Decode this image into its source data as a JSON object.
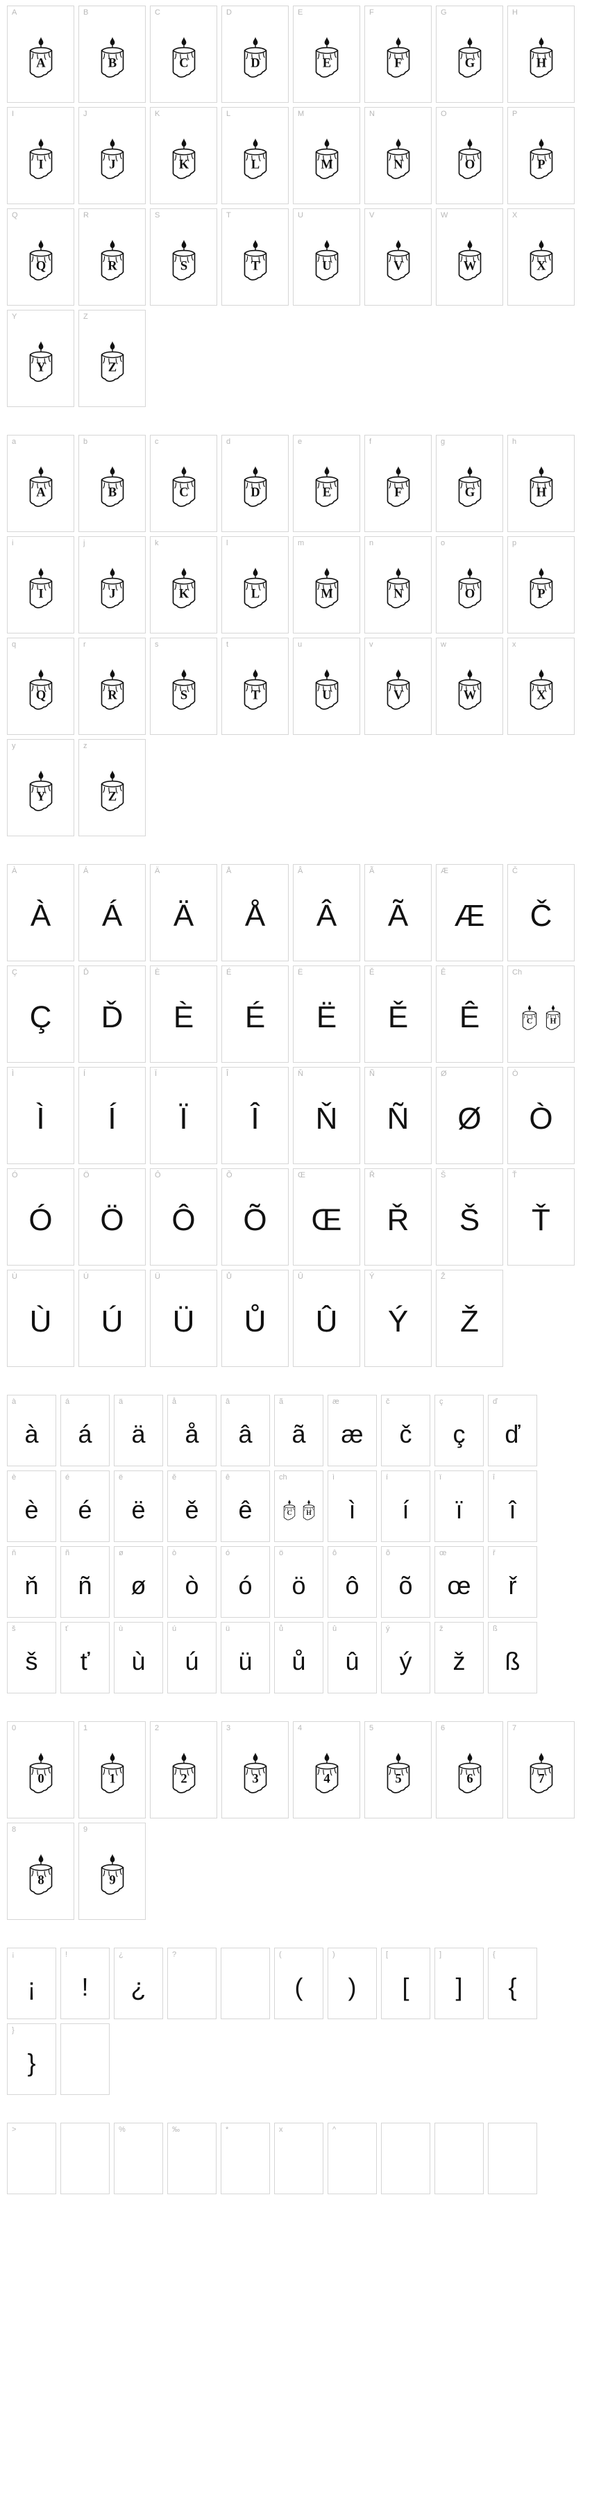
{
  "colors": {
    "cell_border": "#d6d6d6",
    "cell_bg": "#ffffff",
    "label_color": "#b8b8b8",
    "glyph_color": "#111111",
    "body_bg": "#ffffff"
  },
  "cell_sizes": {
    "large": {
      "w": 97,
      "h": 140
    },
    "small": {
      "w": 71,
      "h": 103
    }
  },
  "sections": [
    {
      "id": "uppercase",
      "size": "large",
      "cells": [
        {
          "label": "A",
          "type": "candle",
          "letter": "A"
        },
        {
          "label": "B",
          "type": "candle",
          "letter": "B"
        },
        {
          "label": "C",
          "type": "candle",
          "letter": "C"
        },
        {
          "label": "D",
          "type": "candle",
          "letter": "D"
        },
        {
          "label": "E",
          "type": "candle",
          "letter": "E"
        },
        {
          "label": "F",
          "type": "candle",
          "letter": "F"
        },
        {
          "label": "G",
          "type": "candle",
          "letter": "G"
        },
        {
          "label": "H",
          "type": "candle",
          "letter": "H"
        },
        {
          "label": "I",
          "type": "candle",
          "letter": "I"
        },
        {
          "label": "J",
          "type": "candle",
          "letter": "J"
        },
        {
          "label": "K",
          "type": "candle",
          "letter": "K"
        },
        {
          "label": "L",
          "type": "candle",
          "letter": "L"
        },
        {
          "label": "M",
          "type": "candle",
          "letter": "M"
        },
        {
          "label": "N",
          "type": "candle",
          "letter": "N"
        },
        {
          "label": "O",
          "type": "candle",
          "letter": "O"
        },
        {
          "label": "P",
          "type": "candle",
          "letter": "P"
        },
        {
          "label": "Q",
          "type": "candle",
          "letter": "Q"
        },
        {
          "label": "R",
          "type": "candle",
          "letter": "R"
        },
        {
          "label": "S",
          "type": "candle",
          "letter": "S"
        },
        {
          "label": "T",
          "type": "candle",
          "letter": "T"
        },
        {
          "label": "U",
          "type": "candle",
          "letter": "U"
        },
        {
          "label": "V",
          "type": "candle",
          "letter": "V"
        },
        {
          "label": "W",
          "type": "candle",
          "letter": "W"
        },
        {
          "label": "X",
          "type": "candle",
          "letter": "X"
        },
        {
          "label": "Y",
          "type": "candle",
          "letter": "Y"
        },
        {
          "label": "Z",
          "type": "candle",
          "letter": "Z"
        }
      ]
    },
    {
      "id": "lowercase",
      "size": "large",
      "cells": [
        {
          "label": "a",
          "type": "candle",
          "letter": "A"
        },
        {
          "label": "b",
          "type": "candle",
          "letter": "B"
        },
        {
          "label": "c",
          "type": "candle",
          "letter": "C"
        },
        {
          "label": "d",
          "type": "candle",
          "letter": "D"
        },
        {
          "label": "e",
          "type": "candle",
          "letter": "E"
        },
        {
          "label": "f",
          "type": "candle",
          "letter": "F"
        },
        {
          "label": "g",
          "type": "candle",
          "letter": "G"
        },
        {
          "label": "h",
          "type": "candle",
          "letter": "H"
        },
        {
          "label": "i",
          "type": "candle",
          "letter": "I"
        },
        {
          "label": "j",
          "type": "candle",
          "letter": "J"
        },
        {
          "label": "k",
          "type": "candle",
          "letter": "K"
        },
        {
          "label": "l",
          "type": "candle",
          "letter": "L"
        },
        {
          "label": "m",
          "type": "candle",
          "letter": "M"
        },
        {
          "label": "n",
          "type": "candle",
          "letter": "N"
        },
        {
          "label": "o",
          "type": "candle",
          "letter": "O"
        },
        {
          "label": "p",
          "type": "candle",
          "letter": "P"
        },
        {
          "label": "q",
          "type": "candle",
          "letter": "Q"
        },
        {
          "label": "r",
          "type": "candle",
          "letter": "R"
        },
        {
          "label": "s",
          "type": "candle",
          "letter": "S"
        },
        {
          "label": "t",
          "type": "candle",
          "letter": "T"
        },
        {
          "label": "u",
          "type": "candle",
          "letter": "U"
        },
        {
          "label": "v",
          "type": "candle",
          "letter": "V"
        },
        {
          "label": "w",
          "type": "candle",
          "letter": "W"
        },
        {
          "label": "x",
          "type": "candle",
          "letter": "X"
        },
        {
          "label": "y",
          "type": "candle",
          "letter": "Y"
        },
        {
          "label": "z",
          "type": "candle",
          "letter": "Z"
        }
      ]
    },
    {
      "id": "accented-upper",
      "size": "large",
      "cells": [
        {
          "label": "À",
          "type": "fallback",
          "glyph": "À"
        },
        {
          "label": "Á",
          "type": "fallback",
          "glyph": "Á"
        },
        {
          "label": "Ä",
          "type": "fallback",
          "glyph": "Ä"
        },
        {
          "label": "Å",
          "type": "fallback",
          "glyph": "Å"
        },
        {
          "label": "Â",
          "type": "fallback",
          "glyph": "Â"
        },
        {
          "label": "Ã",
          "type": "fallback",
          "glyph": "Ã"
        },
        {
          "label": "Æ",
          "type": "fallback",
          "glyph": "Æ"
        },
        {
          "label": "Č",
          "type": "fallback",
          "glyph": "Č"
        },
        {
          "label": "Ç",
          "type": "fallback",
          "glyph": "Ç"
        },
        {
          "label": "Ď",
          "type": "fallback",
          "glyph": "Ď"
        },
        {
          "label": "È",
          "type": "fallback",
          "glyph": "È"
        },
        {
          "label": "É",
          "type": "fallback",
          "glyph": "É"
        },
        {
          "label": "Ë",
          "type": "fallback",
          "glyph": "Ë"
        },
        {
          "label": "Ě",
          "type": "fallback",
          "glyph": "Ě"
        },
        {
          "label": "Ê",
          "type": "fallback",
          "glyph": "Ê"
        },
        {
          "label": "Ch",
          "type": "multi",
          "letters": [
            "C",
            "H"
          ]
        },
        {
          "label": "Ì",
          "type": "fallback",
          "glyph": "Ì"
        },
        {
          "label": "Í",
          "type": "fallback",
          "glyph": "Í"
        },
        {
          "label": "Ï",
          "type": "fallback",
          "glyph": "Ï"
        },
        {
          "label": "Î",
          "type": "fallback",
          "glyph": "Î"
        },
        {
          "label": "Ň",
          "type": "fallback",
          "glyph": "Ň"
        },
        {
          "label": "Ñ",
          "type": "fallback",
          "glyph": "Ñ"
        },
        {
          "label": "Ø",
          "type": "fallback",
          "glyph": "Ø"
        },
        {
          "label": "Ò",
          "type": "fallback",
          "glyph": "Ò"
        },
        {
          "label": "Ó",
          "type": "fallback",
          "glyph": "Ó"
        },
        {
          "label": "Ö",
          "type": "fallback",
          "glyph": "Ö"
        },
        {
          "label": "Ô",
          "type": "fallback",
          "glyph": "Ô"
        },
        {
          "label": "Õ",
          "type": "fallback",
          "glyph": "Õ"
        },
        {
          "label": "Œ",
          "type": "fallback",
          "glyph": "Œ"
        },
        {
          "label": "Ř",
          "type": "fallback",
          "glyph": "Ř"
        },
        {
          "label": "Š",
          "type": "fallback",
          "glyph": "Š"
        },
        {
          "label": "Ť",
          "type": "fallback",
          "glyph": "Ť"
        },
        {
          "label": "Ù",
          "type": "fallback",
          "glyph": "Ù"
        },
        {
          "label": "Ú",
          "type": "fallback",
          "glyph": "Ú"
        },
        {
          "label": "Ü",
          "type": "fallback",
          "glyph": "Ü"
        },
        {
          "label": "Ů",
          "type": "fallback",
          "glyph": "Ů"
        },
        {
          "label": "Û",
          "type": "fallback",
          "glyph": "Û"
        },
        {
          "label": "Ý",
          "type": "fallback",
          "glyph": "Ý"
        },
        {
          "label": "Ž",
          "type": "fallback",
          "glyph": "Ž"
        }
      ]
    },
    {
      "id": "accented-lower",
      "size": "small",
      "cells": [
        {
          "label": "à",
          "type": "fallback",
          "glyph": "à"
        },
        {
          "label": "á",
          "type": "fallback",
          "glyph": "á"
        },
        {
          "label": "ä",
          "type": "fallback",
          "glyph": "ä"
        },
        {
          "label": "å",
          "type": "fallback",
          "glyph": "å"
        },
        {
          "label": "â",
          "type": "fallback",
          "glyph": "â"
        },
        {
          "label": "ã",
          "type": "fallback",
          "glyph": "ã"
        },
        {
          "label": "æ",
          "type": "fallback",
          "glyph": "æ"
        },
        {
          "label": "č",
          "type": "fallback",
          "glyph": "č"
        },
        {
          "label": "ç",
          "type": "fallback",
          "glyph": "ç"
        },
        {
          "label": "ď",
          "type": "fallback",
          "glyph": "ď"
        },
        {
          "label": "è",
          "type": "fallback",
          "glyph": "è"
        },
        {
          "label": "é",
          "type": "fallback",
          "glyph": "é"
        },
        {
          "label": "ë",
          "type": "fallback",
          "glyph": "ë"
        },
        {
          "label": "ě",
          "type": "fallback",
          "glyph": "ě"
        },
        {
          "label": "ê",
          "type": "fallback",
          "glyph": "ê"
        },
        {
          "label": "ch",
          "type": "multi",
          "letters": [
            "C",
            "H"
          ]
        },
        {
          "label": "ì",
          "type": "fallback",
          "glyph": "ì"
        },
        {
          "label": "í",
          "type": "fallback",
          "glyph": "í"
        },
        {
          "label": "ï",
          "type": "fallback",
          "glyph": "ï"
        },
        {
          "label": "î",
          "type": "fallback",
          "glyph": "î"
        },
        {
          "label": "ň",
          "type": "fallback",
          "glyph": "ň"
        },
        {
          "label": "ñ",
          "type": "fallback",
          "glyph": "ñ"
        },
        {
          "label": "ø",
          "type": "fallback",
          "glyph": "ø"
        },
        {
          "label": "ò",
          "type": "fallback",
          "glyph": "ò"
        },
        {
          "label": "ó",
          "type": "fallback",
          "glyph": "ó"
        },
        {
          "label": "ö",
          "type": "fallback",
          "glyph": "ö"
        },
        {
          "label": "ô",
          "type": "fallback",
          "glyph": "ô"
        },
        {
          "label": "õ",
          "type": "fallback",
          "glyph": "õ"
        },
        {
          "label": "œ",
          "type": "fallback",
          "glyph": "œ"
        },
        {
          "label": "ř",
          "type": "fallback",
          "glyph": "ř"
        },
        {
          "label": "š",
          "type": "fallback",
          "glyph": "š"
        },
        {
          "label": "ť",
          "type": "fallback",
          "glyph": "ť"
        },
        {
          "label": "ù",
          "type": "fallback",
          "glyph": "ù"
        },
        {
          "label": "ú",
          "type": "fallback",
          "glyph": "ú"
        },
        {
          "label": "ü",
          "type": "fallback",
          "glyph": "ü"
        },
        {
          "label": "ů",
          "type": "fallback",
          "glyph": "ů"
        },
        {
          "label": "û",
          "type": "fallback",
          "glyph": "û"
        },
        {
          "label": "ý",
          "type": "fallback",
          "glyph": "ý"
        },
        {
          "label": "ž",
          "type": "fallback",
          "glyph": "ž"
        },
        {
          "label": "ß",
          "type": "fallback",
          "glyph": "ß"
        }
      ]
    },
    {
      "id": "digits",
      "size": "large",
      "cells": [
        {
          "label": "0",
          "type": "candle",
          "letter": "0"
        },
        {
          "label": "1",
          "type": "candle",
          "letter": "1"
        },
        {
          "label": "2",
          "type": "candle",
          "letter": "2"
        },
        {
          "label": "3",
          "type": "candle",
          "letter": "3"
        },
        {
          "label": "4",
          "type": "candle",
          "letter": "4"
        },
        {
          "label": "5",
          "type": "candle",
          "letter": "5"
        },
        {
          "label": "6",
          "type": "candle",
          "letter": "6"
        },
        {
          "label": "7",
          "type": "candle",
          "letter": "7"
        },
        {
          "label": "8",
          "type": "candle",
          "letter": "8"
        },
        {
          "label": "9",
          "type": "candle",
          "letter": "9"
        }
      ]
    },
    {
      "id": "punct1",
      "size": "small",
      "cells": [
        {
          "label": "¡",
          "type": "fallback",
          "glyph": "¡"
        },
        {
          "label": "!",
          "type": "fallback",
          "glyph": "!"
        },
        {
          "label": "¿",
          "type": "fallback",
          "glyph": "¿"
        },
        {
          "label": "?",
          "type": "empty"
        },
        {
          "label": "",
          "type": "empty"
        },
        {
          "label": "(",
          "type": "fallback",
          "glyph": "("
        },
        {
          "label": ")",
          "type": "fallback",
          "glyph": ")"
        },
        {
          "label": "[",
          "type": "fallback",
          "glyph": "["
        },
        {
          "label": "]",
          "type": "fallback",
          "glyph": "]"
        },
        {
          "label": "{",
          "type": "fallback",
          "glyph": "{"
        },
        {
          "label": "}",
          "type": "fallback",
          "glyph": "}"
        },
        {
          "label": "",
          "type": "empty"
        }
      ]
    },
    {
      "id": "punct2",
      "size": "small",
      "cells": [
        {
          "label": ">",
          "type": "empty"
        },
        {
          "label": "",
          "type": "empty"
        },
        {
          "label": "%",
          "type": "empty"
        },
        {
          "label": "‰",
          "type": "empty"
        },
        {
          "label": "*",
          "type": "empty"
        },
        {
          "label": "x",
          "type": "empty"
        },
        {
          "label": "^",
          "type": "empty"
        },
        {
          "label": "",
          "type": "empty"
        },
        {
          "label": "",
          "type": "empty"
        },
        {
          "label": "",
          "type": "empty"
        }
      ]
    }
  ]
}
